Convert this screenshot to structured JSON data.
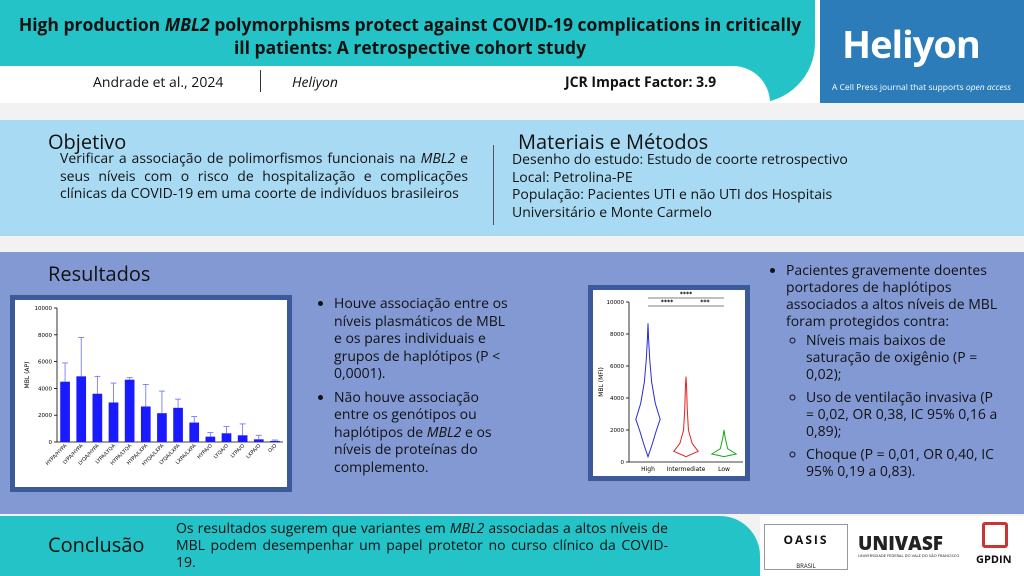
{
  "header": {
    "title": [
      "High production ",
      "MBL2",
      " polymorphisms protect against COVID-19 complications in critically ill patients: A retrospective cohort study"
    ],
    "authors": "Andrade et al., 2024",
    "journal": "Heliyon",
    "impact": "JCR Impact Factor: 3.9",
    "logo": "Heliyon",
    "logo_tagline": [
      "A Cell Press journal that supports ",
      "open access"
    ]
  },
  "objective": {
    "heading": "Objetivo",
    "text": [
      "Verificar a associação de polimorfismos funcionais na ",
      "MBL2",
      " e seus níveis com o risco de hospitalização e complicações clínicas da COVID-19 em uma coorte de indivíduos brasileiros"
    ]
  },
  "methods": {
    "heading": "Materiais e Métodos",
    "lines": [
      "Desenho do estudo: Estudo de coorte retrospectivo",
      "Local: Petrolina-PE",
      "População: Pacientes UTI e não UTI dos Hospitais Universitário e Monte Carmelo"
    ]
  },
  "results": {
    "heading": "Resultados",
    "bar_chart": {
      "type": "bar",
      "ylabel": "MBL (AP)",
      "color": "#1a1aff",
      "categories": [
        "HYPA/HYPA",
        "LYPA/HYPA",
        "LYQA/HYPA",
        "LYPA/LYQA",
        "HYPA/LYQA",
        "HYPA/LXPA",
        "HYQA/LXPA",
        "LYQA/LXPA",
        "LXPA/LXPA",
        "HYPA/O",
        "LYQA/O",
        "LYPA/O",
        "LXPA/O",
        "O/O"
      ],
      "values": [
        4500,
        4900,
        3600,
        2950,
        4650,
        2650,
        2150,
        2550,
        1450,
        400,
        650,
        500,
        200,
        80
      ],
      "errors": [
        1400,
        2900,
        1300,
        1450,
        150,
        1650,
        1650,
        650,
        450,
        300,
        500,
        850,
        300,
        70
      ],
      "ylim": [
        0,
        10000
      ],
      "yticks": [
        0,
        2000,
        4000,
        6000,
        8000,
        10000
      ]
    },
    "violin_chart": {
      "type": "violin",
      "ylabel": "MBL (MFI)",
      "categories": [
        "High",
        "Intermediate",
        "Low"
      ],
      "colors": [
        "#2b2bd6",
        "#e02020",
        "#18a818"
      ],
      "significance": [
        "****",
        "****",
        "***"
      ],
      "ylim": [
        0,
        10000
      ],
      "yticks": [
        0,
        2000,
        4000,
        6000,
        8000,
        10000
      ]
    },
    "middle_bullets": [
      [
        "Houve associação entre os níveis plasmáticos de MBL e os pares individuais e grupos de haplótipos (P < 0,0001)."
      ],
      [
        "Não houve associação entre os genótipos ou haplótipos de ",
        "MBL2",
        " e os níveis de proteínas do complemento."
      ]
    ],
    "right_intro": "Pacientes gravemente doentes portadores de haplótipos associados a altos níveis de MBL foram protegidos contra:",
    "right_items": [
      "Níveis mais baixos de saturação de oxigênio (P  = 0,02);",
      "Uso de ventilação invasiva (P = 0,02, OR 0,38, IC 95% 0,16 a 0,89);",
      "Choque (P = 0,01, OR 0,40, IC 95% 0,19 a 0,83)."
    ]
  },
  "conclusion": {
    "heading": "Conclusão",
    "text": [
      "Os resultados sugerem que variantes em ",
      "MBL2",
      " associadas a altos níveis de MBL podem desempenhar um papel protetor no curso clínico da COVID-19."
    ]
  },
  "logos": [
    "OASIS",
    "BRASIL",
    "UNIVASF",
    "UNIVERSIDADE FEDERAL DO VALE DO SÃO FRANCISCO",
    "GPDIN"
  ]
}
